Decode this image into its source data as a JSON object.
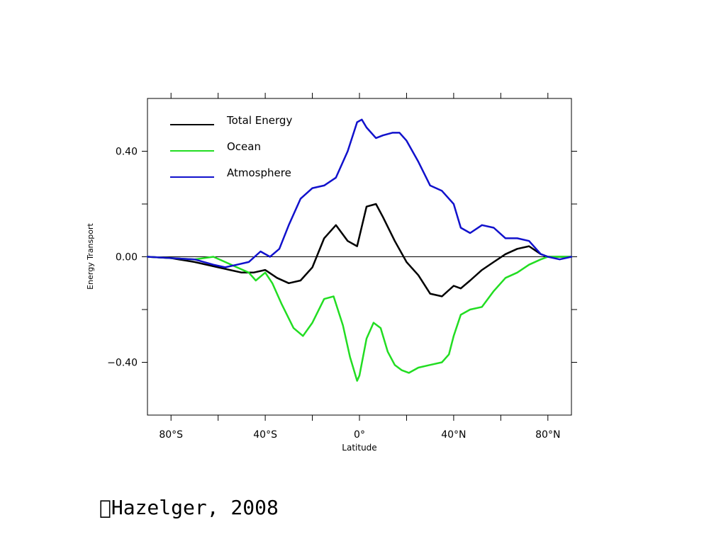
{
  "chart_data": {
    "type": "line",
    "xlabel": "Latitude",
    "ylabel": "Energy Transport",
    "xlim": [
      -90,
      90
    ],
    "ylim": [
      -0.6,
      0.6
    ],
    "grid": false,
    "legend_position": "top-left",
    "x_ticks": [
      -80,
      -40,
      0,
      40,
      80
    ],
    "x_tick_labels": [
      "80°S",
      "40°S",
      "0°",
      "40°N",
      "80°N"
    ],
    "x_minor_ticks": [
      -60,
      -20,
      20,
      60
    ],
    "y_ticks": [
      0.4,
      0.0,
      -0.4
    ],
    "y_tick_labels": [
      "0.40",
      "0.00",
      "−0.40"
    ],
    "y_minor_ticks": [
      0.2,
      -0.2
    ],
    "series": [
      {
        "name": "Total Energy",
        "color": "#000000",
        "x": [
          -90,
          -80,
          -70,
          -60,
          -55,
          -50,
          -45,
          -40,
          -35,
          -30,
          -25,
          -20,
          -15,
          -10,
          -5,
          -1,
          3,
          7,
          10,
          15,
          20,
          25,
          30,
          35,
          40,
          43,
          47,
          52,
          57,
          62,
          67,
          72,
          77,
          80,
          85,
          90
        ],
        "y": [
          0.0,
          -0.005,
          -0.02,
          -0.04,
          -0.05,
          -0.06,
          -0.06,
          -0.05,
          -0.08,
          -0.1,
          -0.09,
          -0.04,
          0.07,
          0.12,
          0.06,
          0.04,
          0.19,
          0.2,
          0.15,
          0.06,
          -0.02,
          -0.07,
          -0.14,
          -0.15,
          -0.11,
          -0.12,
          -0.09,
          -0.05,
          -0.02,
          0.01,
          0.03,
          0.04,
          0.01,
          0.0,
          0.0,
          0.0
        ]
      },
      {
        "name": "Ocean",
        "color": "#22dd22",
        "x": [
          -90,
          -80,
          -70,
          -62,
          -57,
          -52,
          -47,
          -44,
          -40,
          -37,
          -33,
          -28,
          -24,
          -20,
          -15,
          -11,
          -7,
          -4,
          -1,
          0,
          3,
          6,
          9,
          12,
          15,
          18,
          21,
          25,
          30,
          35,
          38,
          40,
          43,
          47,
          52,
          57,
          62,
          67,
          72,
          77,
          80,
          85,
          90
        ],
        "y": [
          0.0,
          -0.005,
          -0.01,
          0.0,
          -0.02,
          -0.04,
          -0.06,
          -0.09,
          -0.06,
          -0.1,
          -0.18,
          -0.27,
          -0.3,
          -0.25,
          -0.16,
          -0.15,
          -0.26,
          -0.38,
          -0.47,
          -0.45,
          -0.31,
          -0.25,
          -0.27,
          -0.36,
          -0.41,
          -0.43,
          -0.44,
          -0.42,
          -0.41,
          -0.4,
          -0.37,
          -0.3,
          -0.22,
          -0.2,
          -0.19,
          -0.13,
          -0.08,
          -0.06,
          -0.03,
          -0.01,
          0.0,
          0.0,
          0.0
        ]
      },
      {
        "name": "Atmosphere",
        "color": "#1111cc",
        "x": [
          -90,
          -80,
          -70,
          -62,
          -57,
          -52,
          -47,
          -42,
          -38,
          -34,
          -30,
          -25,
          -20,
          -15,
          -10,
          -5,
          -1,
          1,
          3,
          7,
          10,
          14,
          17,
          20,
          25,
          30,
          35,
          40,
          43,
          47,
          52,
          57,
          62,
          67,
          72,
          77,
          80,
          85,
          90
        ],
        "y": [
          0.0,
          -0.005,
          -0.01,
          -0.03,
          -0.04,
          -0.03,
          -0.02,
          0.02,
          0.0,
          0.03,
          0.12,
          0.22,
          0.26,
          0.27,
          0.3,
          0.4,
          0.51,
          0.52,
          0.49,
          0.45,
          0.46,
          0.47,
          0.47,
          0.44,
          0.36,
          0.27,
          0.25,
          0.2,
          0.11,
          0.09,
          0.12,
          0.11,
          0.07,
          0.07,
          0.06,
          0.01,
          0.0,
          -0.01,
          0.0
        ]
      }
    ]
  },
  "credit": "\u0000Hazelger, 2008"
}
